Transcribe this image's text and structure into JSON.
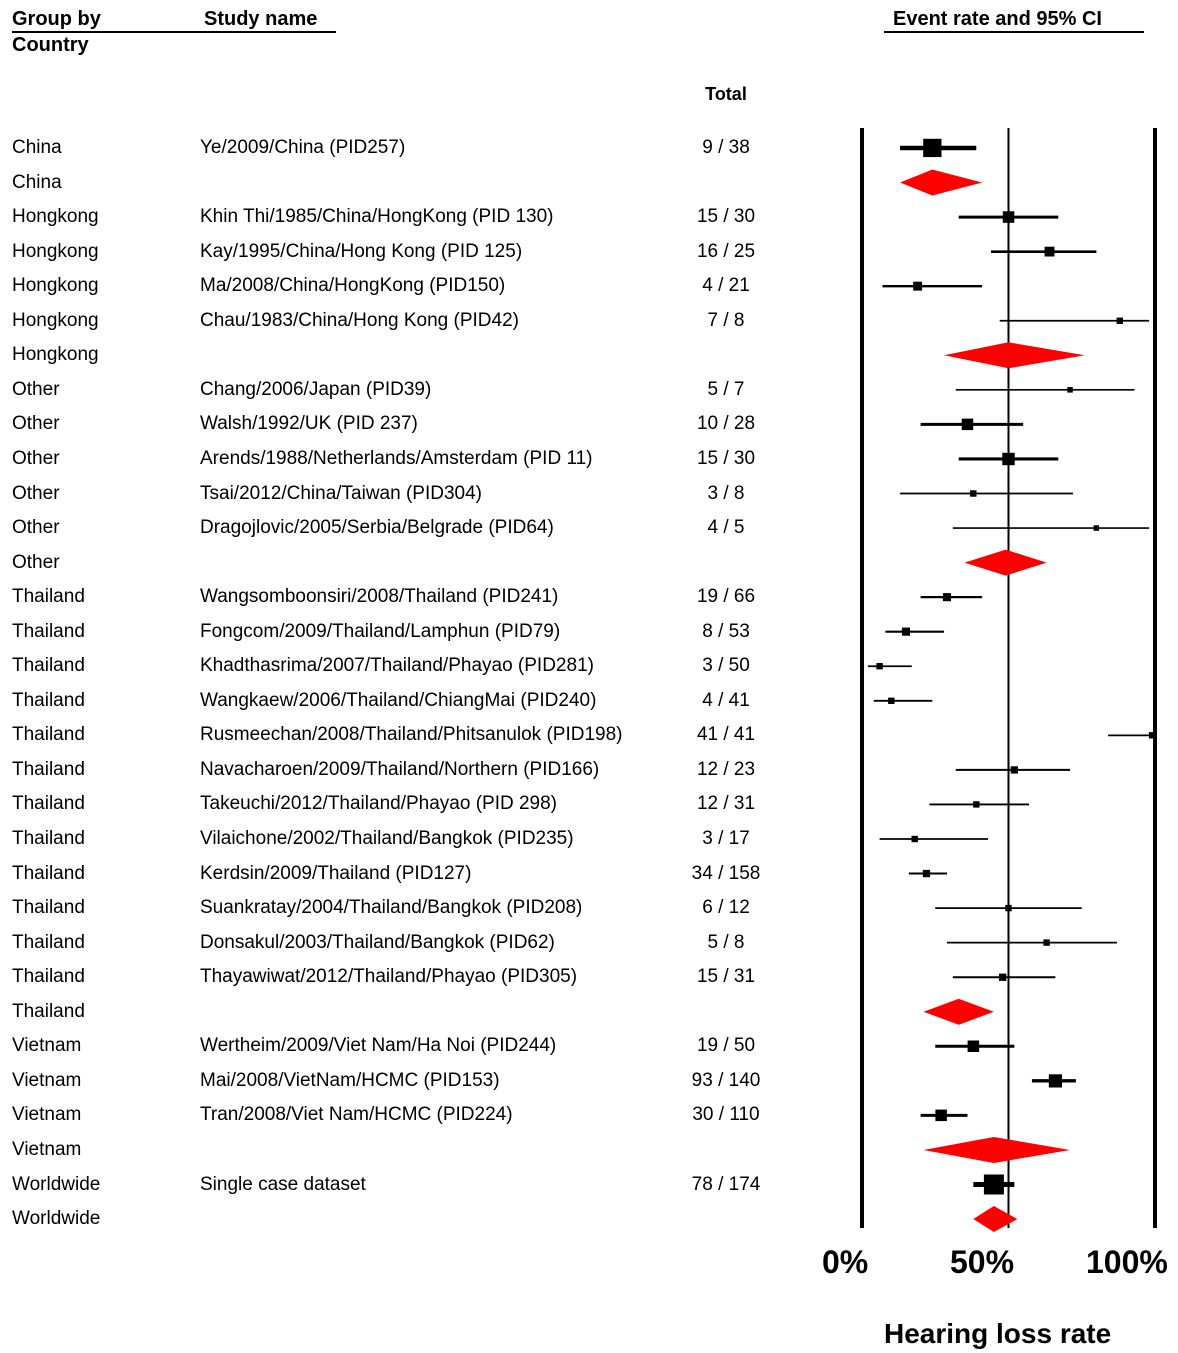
{
  "headers": {
    "group_by": "Group by",
    "country": "Country",
    "study_name": "Study name",
    "total": "Total",
    "effect": "Event rate and 95% CI"
  },
  "chart_data": {
    "type": "forest",
    "xlabel": "Hearing loss rate",
    "x_ticks": [
      "0%",
      "50%",
      "100%"
    ],
    "xlim": [
      0,
      1
    ],
    "reference_line": 0.5,
    "rows": [
      {
        "group": "China",
        "study": "Ye/2009/China (PID257)",
        "total": "9 / 38",
        "kind": "study",
        "est": 0.24,
        "lo": 0.13,
        "hi": 0.39,
        "weight": 0.9
      },
      {
        "group": "China",
        "study": "",
        "total": "",
        "kind": "summary",
        "est": 0.24,
        "lo": 0.13,
        "hi": 0.41
      },
      {
        "group": "Hongkong",
        "study": "Khin Thi/1985/China/HongKong (PID 130)",
        "total": "15 / 30",
        "kind": "study",
        "est": 0.5,
        "lo": 0.33,
        "hi": 0.67,
        "weight": 0.5
      },
      {
        "group": "Hongkong",
        "study": "Kay/1995/China/Hong Kong (PID 125)",
        "total": "16 / 25",
        "kind": "study",
        "est": 0.64,
        "lo": 0.44,
        "hi": 0.8,
        "weight": 0.4
      },
      {
        "group": "Hongkong",
        "study": "Ma/2008/China/HongKong (PID150)",
        "total": "4 / 21",
        "kind": "study",
        "est": 0.19,
        "lo": 0.07,
        "hi": 0.41,
        "weight": 0.35
      },
      {
        "group": "Hongkong",
        "study": "Chau/1983/China/Hong Kong (PID42)",
        "total": "7 / 8",
        "kind": "study",
        "est": 0.88,
        "lo": 0.47,
        "hi": 0.98,
        "weight": 0.2
      },
      {
        "group": "Hongkong",
        "study": "",
        "total": "",
        "kind": "summary",
        "est": 0.5,
        "lo": 0.28,
        "hi": 0.76
      },
      {
        "group": "Other",
        "study": "Chang/2006/Japan (PID39)",
        "total": "5 / 7",
        "kind": "study",
        "est": 0.71,
        "lo": 0.32,
        "hi": 0.93,
        "weight": 0.15
      },
      {
        "group": "Other",
        "study": "Walsh/1992/UK (PID 237)",
        "total": "10 / 28",
        "kind": "study",
        "est": 0.36,
        "lo": 0.2,
        "hi": 0.55,
        "weight": 0.5
      },
      {
        "group": "Other",
        "study": "Arends/1988/Netherlands/Amsterdam (PID 11)",
        "total": "15 / 30",
        "kind": "study",
        "est": 0.5,
        "lo": 0.33,
        "hi": 0.67,
        "weight": 0.55
      },
      {
        "group": "Other",
        "study": "Tsai/2012/China/Taiwan (PID304)",
        "total": "3 / 8",
        "kind": "study",
        "est": 0.38,
        "lo": 0.13,
        "hi": 0.72,
        "weight": 0.2
      },
      {
        "group": "Other",
        "study": "Dragojlovic/2005/Serbia/Belgrade (PID64)",
        "total": "4 / 5",
        "kind": "study",
        "est": 0.8,
        "lo": 0.31,
        "hi": 0.98,
        "weight": 0.15
      },
      {
        "group": "Other",
        "study": "",
        "total": "",
        "kind": "summary",
        "est": 0.49,
        "lo": 0.35,
        "hi": 0.63
      },
      {
        "group": "Thailand",
        "study": "Wangsomboonsiri/2008/Thailand (PID241)",
        "total": "19 / 66",
        "kind": "study",
        "est": 0.29,
        "lo": 0.2,
        "hi": 0.41,
        "weight": 0.3
      },
      {
        "group": "Thailand",
        "study": "Fongcom/2009/Thailand/Lamphun (PID79)",
        "total": "8 / 53",
        "kind": "study",
        "est": 0.15,
        "lo": 0.08,
        "hi": 0.28,
        "weight": 0.3
      },
      {
        "group": "Thailand",
        "study": "Khadthasrima/2007/Thailand/Phayao (PID281)",
        "total": "3 / 50",
        "kind": "study",
        "est": 0.06,
        "lo": 0.02,
        "hi": 0.17,
        "weight": 0.2
      },
      {
        "group": "Thailand",
        "study": "Wangkaew/2006/Thailand/ChiangMai (PID240)",
        "total": "4 / 41",
        "kind": "study",
        "est": 0.1,
        "lo": 0.04,
        "hi": 0.24,
        "weight": 0.2
      },
      {
        "group": "Thailand",
        "study": "Rusmeechan/2008/Thailand/Phitsanulok (PID198)",
        "total": "41 / 41",
        "kind": "study",
        "est": 0.99,
        "lo": 0.84,
        "hi": 1.0,
        "weight": 0.2
      },
      {
        "group": "Thailand",
        "study": "Navacharoen/2009/Thailand/Northern (PID166)",
        "total": "12 / 23",
        "kind": "study",
        "est": 0.52,
        "lo": 0.32,
        "hi": 0.71,
        "weight": 0.25
      },
      {
        "group": "Thailand",
        "study": "Takeuchi/2012/Thailand/Phayao (PID 298)",
        "total": "12 / 31",
        "kind": "study",
        "est": 0.39,
        "lo": 0.23,
        "hi": 0.57,
        "weight": 0.2
      },
      {
        "group": "Thailand",
        "study": "Vilaichone/2002/Thailand/Bangkok (PID235)",
        "total": "3 / 17",
        "kind": "study",
        "est": 0.18,
        "lo": 0.06,
        "hi": 0.43,
        "weight": 0.2
      },
      {
        "group": "Thailand",
        "study": "Kerdsin/2009/Thailand (PID127)",
        "total": "34 / 158",
        "kind": "study",
        "est": 0.22,
        "lo": 0.16,
        "hi": 0.29,
        "weight": 0.25
      },
      {
        "group": "Thailand",
        "study": "Suankratay/2004/Thailand/Bangkok (PID208)",
        "total": "6 / 12",
        "kind": "study",
        "est": 0.5,
        "lo": 0.25,
        "hi": 0.75,
        "weight": 0.2
      },
      {
        "group": "Thailand",
        "study": "Donsakul/2003/Thailand/Bangkok (PID62)",
        "total": "5 / 8",
        "kind": "study",
        "est": 0.63,
        "lo": 0.29,
        "hi": 0.87,
        "weight": 0.2
      },
      {
        "group": "Thailand",
        "study": "Thayawiwat/2012/Thailand/Phayao (PID305)",
        "total": "15 / 31",
        "kind": "study",
        "est": 0.48,
        "lo": 0.31,
        "hi": 0.66,
        "weight": 0.25
      },
      {
        "group": "Thailand",
        "study": "",
        "total": "",
        "kind": "summary",
        "est": 0.33,
        "lo": 0.21,
        "hi": 0.45
      },
      {
        "group": "Vietnam",
        "study": "Wertheim/2009/Viet Nam/Ha Noi (PID244)",
        "total": "19 / 50",
        "kind": "study",
        "est": 0.38,
        "lo": 0.25,
        "hi": 0.52,
        "weight": 0.5
      },
      {
        "group": "Vietnam",
        "study": "Mai/2008/VietNam/HCMC (PID153)",
        "total": "93 / 140",
        "kind": "study",
        "est": 0.66,
        "lo": 0.58,
        "hi": 0.73,
        "weight": 0.6
      },
      {
        "group": "Vietnam",
        "study": "Tran/2008/Viet Nam/HCMC (PID224)",
        "total": "30 / 110",
        "kind": "study",
        "est": 0.27,
        "lo": 0.2,
        "hi": 0.36,
        "weight": 0.5
      },
      {
        "group": "Vietnam",
        "study": "",
        "total": "",
        "kind": "summary",
        "est": 0.45,
        "lo": 0.21,
        "hi": 0.71
      },
      {
        "group": "Worldwide",
        "study": "Single case dataset",
        "total": "78 / 174",
        "kind": "study",
        "est": 0.45,
        "lo": 0.38,
        "hi": 0.52,
        "weight": 1.0
      },
      {
        "group": "Worldwide",
        "study": "",
        "total": "",
        "kind": "summary",
        "est": 0.45,
        "lo": 0.38,
        "hi": 0.53
      }
    ]
  },
  "colors": {
    "summary": "#ff0000",
    "marker": "#000000"
  }
}
